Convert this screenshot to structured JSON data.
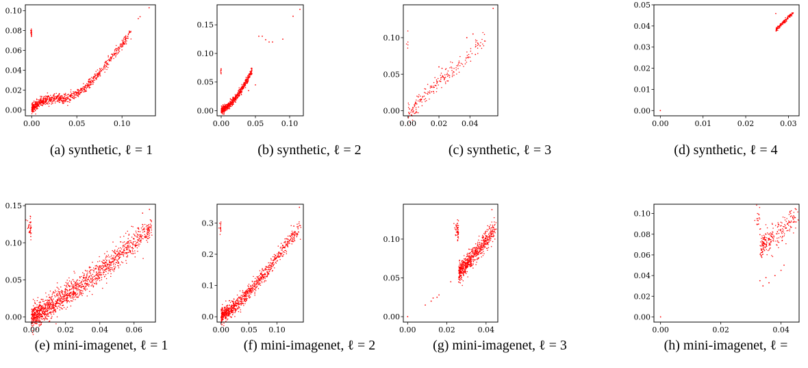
{
  "figure": {
    "colors": {
      "points": "#ff0000",
      "axes": "#000000",
      "background": "#ffffff"
    }
  },
  "chart_data": [
    {
      "type": "scatter",
      "panel": "a",
      "caption": "(a) synthetic, ℓ = 1",
      "xlim": [
        -0.007,
        0.137
      ],
      "ylim": [
        -0.006,
        0.106
      ],
      "xticks": [
        0.0,
        0.05,
        0.1
      ],
      "xticklabels": [
        "0.00",
        "0.05",
        "0.10"
      ],
      "yticks": [
        0.0,
        0.02,
        0.04,
        0.06,
        0.08,
        0.1
      ],
      "yticklabels": [
        "0.00",
        "0.02",
        "0.04",
        "0.06",
        "0.08",
        "0.10"
      ],
      "trend": [
        [
          0.0,
          0.001
        ],
        [
          0.004,
          0.004
        ],
        [
          0.01,
          0.009
        ],
        [
          0.02,
          0.011
        ],
        [
          0.03,
          0.012
        ],
        [
          0.04,
          0.012
        ],
        [
          0.05,
          0.016
        ],
        [
          0.06,
          0.023
        ],
        [
          0.07,
          0.032
        ],
        [
          0.08,
          0.043
        ],
        [
          0.09,
          0.055
        ],
        [
          0.1,
          0.066
        ],
        [
          0.11,
          0.078
        ]
      ],
      "extra_points": [
        [
          0.118,
          0.092
        ],
        [
          0.12,
          0.094
        ],
        [
          0.13,
          0.103
        ]
      ],
      "n_points": 900,
      "spread": 0.0025
    },
    {
      "type": "scatter",
      "panel": "b",
      "caption": "(b) synthetic, ℓ = 2",
      "xlim": [
        -0.006,
        0.12
      ],
      "ylim": [
        -0.009,
        0.185
      ],
      "xticks": [
        0.0,
        0.05,
        0.1
      ],
      "xticklabels": [
        "0.00",
        "0.05",
        "0.10"
      ],
      "yticks": [
        0.0,
        0.05,
        0.1,
        0.15
      ],
      "yticklabels": [
        "0.00",
        "0.05",
        "0.10",
        "0.15"
      ],
      "trend": [
        [
          0.0,
          0.0
        ],
        [
          0.01,
          0.008
        ],
        [
          0.02,
          0.02
        ],
        [
          0.03,
          0.038
        ],
        [
          0.04,
          0.058
        ],
        [
          0.045,
          0.07
        ]
      ],
      "extra_points": [
        [
          0.055,
          0.13
        ],
        [
          0.06,
          0.13
        ],
        [
          0.065,
          0.124
        ],
        [
          0.07,
          0.12
        ],
        [
          0.075,
          0.12
        ],
        [
          0.09,
          0.125
        ],
        [
          0.105,
          0.165
        ],
        [
          0.115,
          0.177
        ],
        [
          0.05,
          0.045
        ],
        [
          0.04,
          0.035
        ]
      ],
      "n_points": 700,
      "spread": 0.003
    },
    {
      "type": "scatter",
      "panel": "c",
      "caption": "(c) synthetic, ℓ = 3",
      "xlim": [
        -0.003,
        0.058
      ],
      "ylim": [
        -0.007,
        0.145
      ],
      "xticks": [
        0.0,
        0.02,
        0.04
      ],
      "xticklabels": [
        "0.00",
        "0.02",
        "0.04"
      ],
      "yticks": [
        0.0,
        0.05,
        0.1
      ],
      "yticklabels": [
        "0.00",
        "0.05",
        "0.10"
      ],
      "trend": [
        [
          0.0,
          0.0
        ],
        [
          0.004,
          0.004
        ],
        [
          0.01,
          0.02
        ],
        [
          0.02,
          0.04
        ],
        [
          0.03,
          0.055
        ],
        [
          0.04,
          0.075
        ],
        [
          0.045,
          0.09
        ],
        [
          0.05,
          0.095
        ]
      ],
      "extra_points": [
        [
          0.055,
          0.14
        ],
        [
          0.042,
          0.105
        ],
        [
          0.038,
          0.1
        ],
        [
          0.02,
          0.06
        ],
        [
          0.022,
          0.058
        ]
      ],
      "n_points": 220,
      "spread": 0.006
    },
    {
      "type": "scatter",
      "panel": "d",
      "caption": "(d) synthetic, ℓ = 4",
      "xlim": [
        -0.0015,
        0.0325
      ],
      "ylim": [
        -0.0025,
        0.05
      ],
      "xticks": [
        0.0,
        0.01,
        0.02,
        0.03
      ],
      "xticklabels": [
        "0.00",
        "0.01",
        "0.02",
        "0.03"
      ],
      "yticks": [
        0.0,
        0.01,
        0.02,
        0.03,
        0.04,
        0.05
      ],
      "yticklabels": [
        "0.00",
        "0.01",
        "0.02",
        "0.03",
        "0.04",
        "0.05"
      ],
      "trend": [
        [
          0.0271,
          0.0381
        ],
        [
          0.0311,
          0.0462
        ]
      ],
      "extra_points": [
        [
          0.0,
          0.0
        ]
      ],
      "n_points": 160,
      "spread": 0.0004
    },
    {
      "type": "scatter",
      "panel": "e",
      "caption": "(e) mini-imagenet, ℓ = 1",
      "xlim": [
        -0.0035,
        0.0725
      ],
      "ylim": [
        -0.007,
        0.152
      ],
      "xticks": [
        0.0,
        0.02,
        0.04,
        0.06
      ],
      "xticklabels": [
        "0.00",
        "0.02",
        "0.04",
        "0.06"
      ],
      "yticks": [
        0.0,
        0.05,
        0.1,
        0.15
      ],
      "yticklabels": [
        "0.00",
        "0.05",
        "0.10",
        "0.15"
      ],
      "trend": [
        [
          0.0,
          0.0
        ],
        [
          0.01,
          0.012
        ],
        [
          0.02,
          0.028
        ],
        [
          0.03,
          0.045
        ],
        [
          0.04,
          0.062
        ],
        [
          0.05,
          0.082
        ],
        [
          0.06,
          0.1
        ],
        [
          0.07,
          0.12
        ]
      ],
      "extra_points": [
        [
          0.069,
          0.145
        ],
        [
          0.065,
          0.14
        ],
        [
          0.07,
          0.13
        ]
      ],
      "n_points": 1500,
      "spread": 0.008
    },
    {
      "type": "scatter",
      "panel": "f",
      "caption": "(f) mini-imagenet, ℓ = 2",
      "xlim": [
        -0.007,
        0.147
      ],
      "ylim": [
        -0.017,
        0.36
      ],
      "xticks": [
        0.0,
        0.05,
        0.1
      ],
      "xticklabels": [
        "0.00",
        "0.05",
        "0.10"
      ],
      "yticks": [
        0.0,
        0.1,
        0.2,
        0.3
      ],
      "yticklabels": [
        "0.0",
        "0.1",
        "0.2",
        "0.3"
      ],
      "trend": [
        [
          0.0,
          0.0
        ],
        [
          0.02,
          0.025
        ],
        [
          0.04,
          0.06
        ],
        [
          0.06,
          0.1
        ],
        [
          0.08,
          0.14
        ],
        [
          0.1,
          0.19
        ],
        [
          0.12,
          0.24
        ],
        [
          0.14,
          0.28
        ]
      ],
      "extra_points": [
        [
          0.14,
          0.35
        ],
        [
          0.13,
          0.29
        ]
      ],
      "n_points": 900,
      "spread": 0.012
    },
    {
      "type": "scatter",
      "panel": "g",
      "caption": "(g) mini-imagenet, ℓ = 3",
      "xlim": [
        -0.0022,
        0.046
      ],
      "ylim": [
        -0.007,
        0.145
      ],
      "xticks": [
        0.0,
        0.02,
        0.04
      ],
      "xticklabels": [
        "0.00",
        "0.02",
        "0.04"
      ],
      "yticks": [
        0.0,
        0.05,
        0.1
      ],
      "yticklabels": [
        "0.00",
        "0.05",
        "0.10"
      ],
      "trend": [
        [
          0.026,
          0.055
        ],
        [
          0.03,
          0.068
        ],
        [
          0.034,
          0.08
        ],
        [
          0.038,
          0.092
        ],
        [
          0.042,
          0.105
        ],
        [
          0.044,
          0.112
        ]
      ],
      "extra_points": [
        [
          0.0,
          0.0
        ],
        [
          0.009,
          0.015
        ],
        [
          0.012,
          0.02
        ],
        [
          0.013,
          0.024
        ],
        [
          0.015,
          0.025
        ],
        [
          0.016,
          0.028
        ],
        [
          0.022,
          0.045
        ],
        [
          0.043,
          0.138
        ]
      ],
      "n_points": 700,
      "spread": 0.006
    },
    {
      "type": "scatter",
      "panel": "h",
      "caption": "(h) mini-imagenet, ℓ =",
      "xlim": [
        -0.0022,
        0.046
      ],
      "ylim": [
        -0.005,
        0.109
      ],
      "xticks": [
        0.0,
        0.02,
        0.04
      ],
      "xticklabels": [
        "0.00",
        "0.02",
        "0.04"
      ],
      "yticks": [
        0.0,
        0.02,
        0.04,
        0.06,
        0.08,
        0.1
      ],
      "yticklabels": [
        "0.00",
        "0.02",
        "0.04",
        "0.06",
        "0.08",
        "0.10"
      ],
      "trend": [
        [
          0.033,
          0.068
        ],
        [
          0.036,
          0.074
        ],
        [
          0.039,
          0.08
        ],
        [
          0.042,
          0.088
        ],
        [
          0.045,
          0.096
        ]
      ],
      "extra_points": [
        [
          0.0,
          0.0
        ],
        [
          0.033,
          0.035
        ],
        [
          0.034,
          0.03
        ],
        [
          0.035,
          0.038
        ],
        [
          0.036,
          0.033
        ],
        [
          0.038,
          0.04
        ],
        [
          0.04,
          0.045
        ],
        [
          0.041,
          0.05
        ],
        [
          0.043,
          0.102
        ],
        [
          0.045,
          0.104
        ]
      ],
      "n_points": 260,
      "spread": 0.006
    }
  ]
}
